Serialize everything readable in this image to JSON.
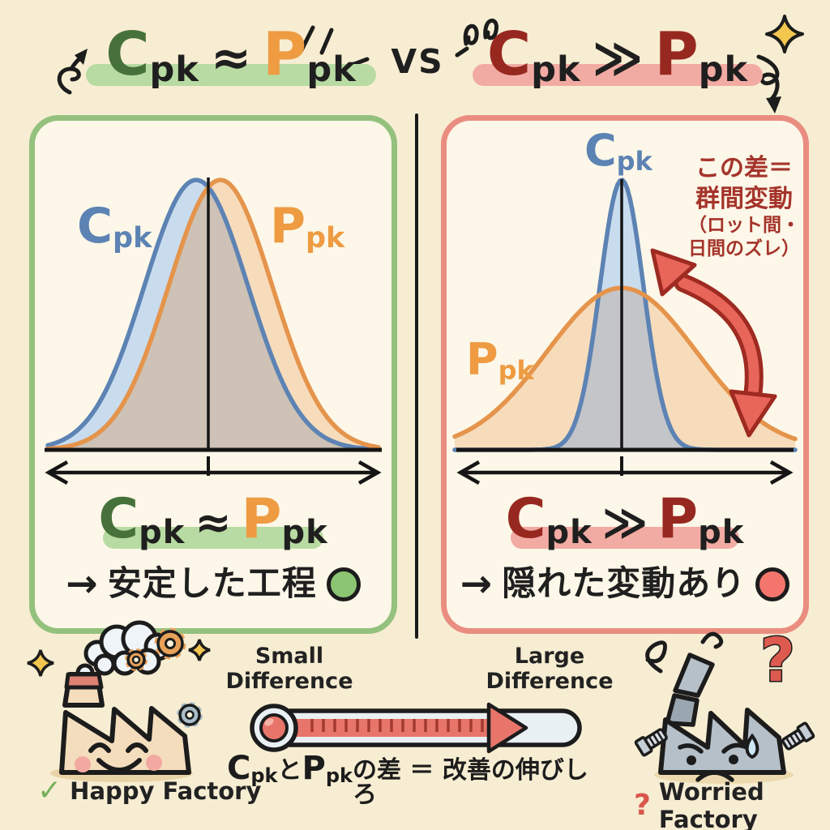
{
  "palette": {
    "background": "#f7edd2",
    "panel_fill": "#fcf7e8",
    "left_panel_border": "#94c17e",
    "right_panel_border": "#ea8d81",
    "green_letter": "#47713a",
    "orange_letter": "#ee9b42",
    "dark_red_letter": "#972820",
    "ink": "#1f1f1f",
    "green_highlight": "#b7dba2",
    "pink_highlight": "#f2aba3",
    "blue_curve": "#5d83b4",
    "blue_fill": "#c9dcee",
    "orange_curve": "#e5944c",
    "orange_fill": "#f7dcbb",
    "overlap_left": "#cdc2b5",
    "overlap_right": "#c3c5c9",
    "annotation_red": "#a5342b",
    "arrow_red": "#e8655a",
    "good_green_dot": "#8cc572",
    "alert_red_dot": "#f3756b",
    "thermometer_red": "#e8756a",
    "factory_tan": "#f4ddbd",
    "factory_gray": "#b6c0c9",
    "sparkle_yellow": "#f3c64f"
  },
  "header": {
    "left_formula": {
      "lhs": "C",
      "lhs_sub": "pk",
      "op": "≈",
      "rhs": "P",
      "rhs_sub": "pk"
    },
    "vs_label": "VS",
    "right_formula": {
      "lhs": "C",
      "lhs_sub": "pk",
      "op": "≫",
      "rhs": "P",
      "rhs_sub": "pk"
    }
  },
  "left_panel": {
    "blue_curve_label": {
      "letter": "C",
      "sub": "pk"
    },
    "orange_curve_label": {
      "letter": "P",
      "sub": "pk"
    },
    "equation": {
      "lhs": "C",
      "lhs_sub": "pk",
      "op": "≈",
      "rhs": "P",
      "rhs_sub": "pk"
    },
    "conclusion_arrow": "→",
    "conclusion_text": "安定した工程"
  },
  "right_panel": {
    "blue_curve_label": {
      "letter": "C",
      "sub": "pk"
    },
    "orange_curve_label": {
      "letter": "P",
      "sub": "pk"
    },
    "annotation_line1": "この差＝",
    "annotation_line2": "群間変動",
    "annotation_line3": "（ロット間・",
    "annotation_line4": "日間のズレ）",
    "equation": {
      "lhs": "C",
      "lhs_sub": "pk",
      "op": "≫",
      "rhs": "P",
      "rhs_sub": "pk"
    },
    "conclusion_arrow": "→",
    "conclusion_text": "隠れた変動あり"
  },
  "footer": {
    "scale_left_line1": "Small",
    "scale_left_line2": "Difference",
    "scale_right_line1": "Large",
    "scale_right_line2": "Difference",
    "formula": {
      "lhs": "C",
      "lhs_sub": "pk",
      "conj": "と",
      "rhs": "P",
      "rhs_sub": "pk",
      "rest": "の差 ＝ 改善の伸びしろ"
    },
    "happy_factory": {
      "mark": "✓",
      "label": "Happy Factory"
    },
    "worried_factory": {
      "mark": "?",
      "label": "Worried Factory",
      "big_question": "?"
    }
  },
  "chart_data": [
    {
      "type": "area",
      "panel": "left",
      "title": "Cpk ≈ Ppk",
      "x_axis": "double-headed arrow, no ticks",
      "series": [
        {
          "name": "Cpk",
          "shape": "normal",
          "mean_offset": -0.2,
          "sigma": 1.0,
          "peak": 1.0,
          "color": "#5d83b4"
        },
        {
          "name": "Ppk",
          "shape": "normal",
          "mean_offset": 0.2,
          "sigma": 1.0,
          "peak": 1.0,
          "color": "#e5944c"
        }
      ],
      "conclusion": "→ 安定した工程"
    },
    {
      "type": "area",
      "panel": "right",
      "title": "Cpk ≫ Ppk",
      "x_axis": "double-headed arrow, no ticks",
      "series": [
        {
          "name": "Cpk",
          "shape": "normal",
          "mean_offset": 0,
          "sigma": 0.42,
          "peak": 1.0,
          "color": "#5d83b4"
        },
        {
          "name": "Ppk",
          "shape": "normal",
          "mean_offset": 0,
          "sigma": 1.44,
          "peak": 0.6,
          "color": "#e5944c"
        }
      ],
      "annotation": "この差＝群間変動（ロット間・日間のズレ）",
      "conclusion": "→ 隠れた変動あり"
    }
  ]
}
